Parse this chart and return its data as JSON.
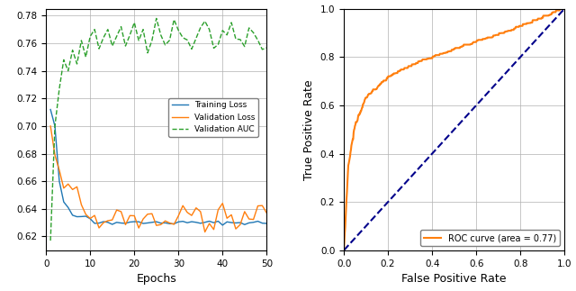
{
  "fig_width": 6.4,
  "fig_height": 3.23,
  "dpi": 100,
  "left_xlabel": "Epochs",
  "left_xlim": [
    0,
    50
  ],
  "left_ylim": [
    0.61,
    0.785
  ],
  "left_yticks": [
    0.62,
    0.64,
    0.66,
    0.68,
    0.7,
    0.72,
    0.74,
    0.76,
    0.78
  ],
  "left_xticks": [
    0,
    10,
    20,
    30,
    40,
    50
  ],
  "right_xlabel": "False Positive Rate",
  "right_ylabel": "True Positive Rate",
  "right_xlim": [
    0.0,
    1.0
  ],
  "right_ylim": [
    0.0,
    1.0
  ],
  "right_xticks": [
    0.0,
    0.2,
    0.4,
    0.6,
    0.8,
    1.0
  ],
  "right_yticks": [
    0.0,
    0.2,
    0.4,
    0.6,
    0.8,
    1.0
  ],
  "training_loss_color": "#1f77b4",
  "validation_loss_color": "#ff7f0e",
  "validation_auc_color": "#2ca02c",
  "roc_color": "#ff7f0e",
  "diagonal_color": "#00008B",
  "legend_labels_left": [
    "Training Loss",
    "Validation Loss",
    "Validation AUC"
  ],
  "legend_label_roc": "ROC curve (area = 0.77)",
  "grid_color": "#b0b0b0",
  "grid_linewidth": 0.5
}
